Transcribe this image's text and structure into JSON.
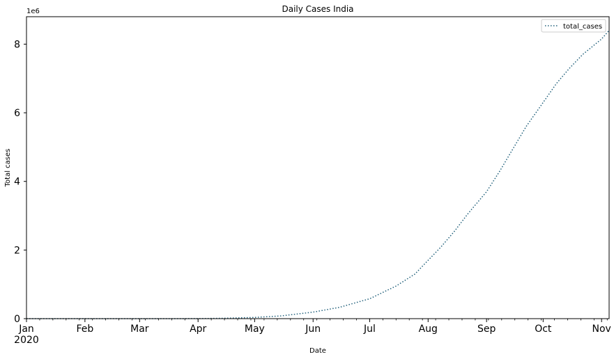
{
  "chart_data": {
    "type": "line",
    "title": "Daily Cases India",
    "xlabel": "Date",
    "ylabel": "Total cases",
    "y_offset_label": "1e6",
    "y_scale_note": "values in units of 1e6",
    "x_range": [
      "2020-01-01",
      "2020-11-05"
    ],
    "ylim": [
      0,
      8.8
    ],
    "grid": false,
    "legend": {
      "position": "top-right",
      "entries": [
        {
          "name": "total_cases",
          "line_style": "dotted",
          "color": "#1f5f7a"
        }
      ]
    },
    "x_ticks": [
      {
        "date": "2020-01-01",
        "label": "Jan",
        "sublabel": "2020"
      },
      {
        "date": "2020-02-01",
        "label": "Feb"
      },
      {
        "date": "2020-03-01",
        "label": "Mar"
      },
      {
        "date": "2020-04-01",
        "label": "Apr"
      },
      {
        "date": "2020-05-01",
        "label": "May"
      },
      {
        "date": "2020-06-01",
        "label": "Jun"
      },
      {
        "date": "2020-07-01",
        "label": "Jul"
      },
      {
        "date": "2020-08-01",
        "label": "Aug"
      },
      {
        "date": "2020-09-01",
        "label": "Sep"
      },
      {
        "date": "2020-10-01",
        "label": "Oct"
      },
      {
        "date": "2020-11-01",
        "label": "Nov"
      }
    ],
    "y_ticks": [
      {
        "value": 0,
        "label": "0"
      },
      {
        "value": 2,
        "label": "2"
      },
      {
        "value": 4,
        "label": "4"
      },
      {
        "value": 6,
        "label": "6"
      },
      {
        "value": 8,
        "label": "8"
      }
    ],
    "series": [
      {
        "name": "total_cases",
        "line_style": "dotted",
        "color": "#1f5f7a",
        "x": [
          "2020-01-01",
          "2020-01-30",
          "2020-03-01",
          "2020-03-15",
          "2020-04-01",
          "2020-04-15",
          "2020-05-01",
          "2020-05-15",
          "2020-06-01",
          "2020-06-15",
          "2020-07-01",
          "2020-07-15",
          "2020-07-25",
          "2020-08-01",
          "2020-08-08",
          "2020-08-15",
          "2020-08-22",
          "2020-09-01",
          "2020-09-08",
          "2020-09-15",
          "2020-09-22",
          "2020-10-01",
          "2020-10-08",
          "2020-10-15",
          "2020-10-22",
          "2020-11-01",
          "2020-11-05"
        ],
        "values": [
          0,
          0,
          0.0001,
          0.0001,
          0.002,
          0.012,
          0.035,
          0.08,
          0.19,
          0.33,
          0.58,
          0.95,
          1.3,
          1.7,
          2.1,
          2.55,
          3.05,
          3.7,
          4.3,
          4.95,
          5.6,
          6.3,
          6.85,
          7.3,
          7.7,
          8.15,
          8.4
        ]
      }
    ]
  }
}
